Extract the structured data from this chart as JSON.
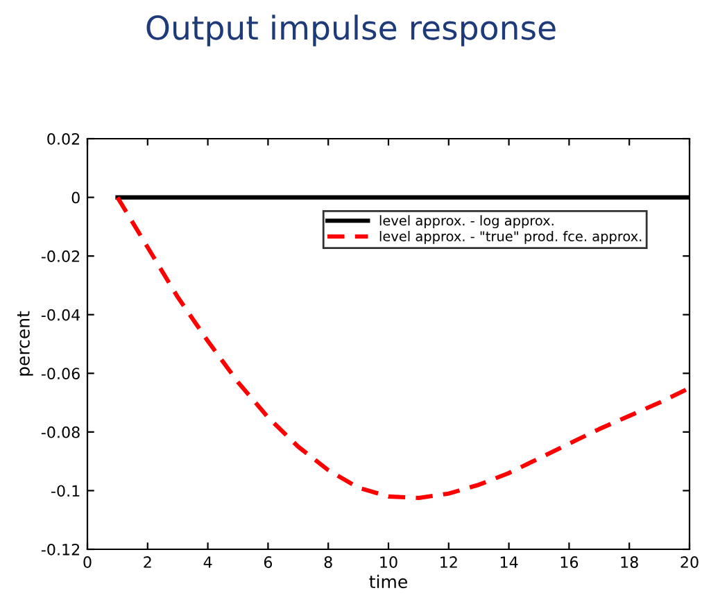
{
  "chart_data": {
    "type": "line",
    "title": "Output impulse response",
    "xlabel": "time",
    "ylabel": "percent",
    "x": [
      1,
      2,
      3,
      4,
      5,
      6,
      7,
      8,
      9,
      10,
      11,
      12,
      13,
      14,
      15,
      16,
      17,
      18,
      19,
      20
    ],
    "series": [
      {
        "name": "level approx. - log approx.",
        "color": "#000000",
        "line_style": "solid",
        "values": [
          0,
          0,
          0,
          0,
          0,
          0,
          0,
          0,
          0,
          0,
          0,
          0,
          0,
          0,
          0,
          0,
          0,
          0,
          0,
          0
        ]
      },
      {
        "name": "level approx. - \"true\" prod. fce. approx.",
        "color": "#ff0000",
        "line_style": "dashed",
        "values": [
          0,
          -0.017,
          -0.034,
          -0.049,
          -0.063,
          -0.075,
          -0.085,
          -0.093,
          -0.099,
          -0.102,
          -0.1025,
          -0.101,
          -0.098,
          -0.094,
          -0.089,
          -0.084,
          -0.079,
          -0.0745,
          -0.07,
          -0.065
        ]
      }
    ],
    "xlim": [
      0,
      20
    ],
    "xticks": [
      0,
      2,
      4,
      6,
      8,
      10,
      12,
      14,
      16,
      18,
      20
    ],
    "ylim": [
      -0.12,
      0.02
    ],
    "yticks": [
      -0.12,
      -0.1,
      -0.08,
      -0.06,
      -0.04,
      -0.02,
      0,
      0.02
    ],
    "grid": false,
    "legend": "top right",
    "marker": "none"
  }
}
